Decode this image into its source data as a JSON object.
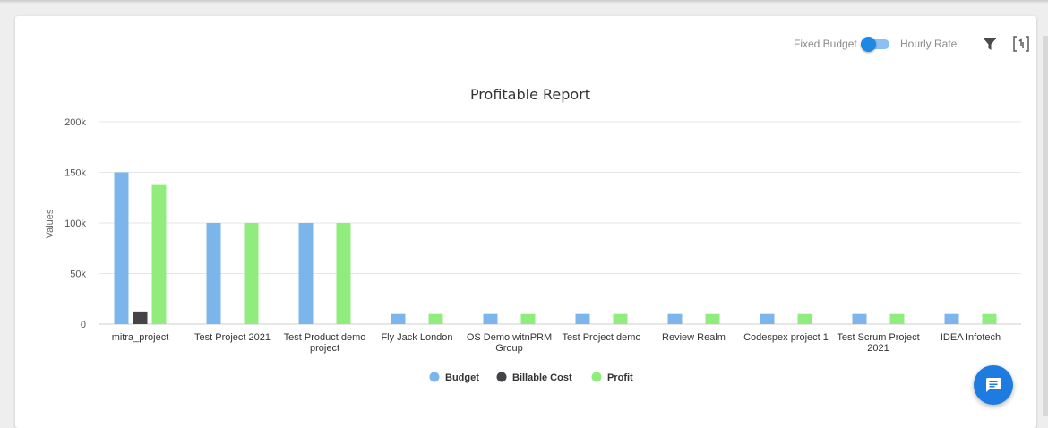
{
  "controls": {
    "fixed_budget_label": "Fixed Budget",
    "hourly_rate_label": "Hourly Rate",
    "toggle_state": "fixed-budget",
    "filter_icon": "filter-icon",
    "fullscreen_icon": "fullscreen-icon",
    "chat_icon": "chat-icon"
  },
  "colors": {
    "budget": "#7cb5ec",
    "billable_cost": "#434348",
    "profit": "#90ed7d",
    "accent": "#1e88e5"
  },
  "chart_data": {
    "type": "bar",
    "title": "Profitable Report",
    "ylabel": "Values",
    "xlabel": "",
    "ylim": [
      0,
      200000
    ],
    "yticks": [
      0,
      50000,
      100000,
      150000,
      200000
    ],
    "ytick_labels": [
      "0",
      "50k",
      "100k",
      "150k",
      "200k"
    ],
    "grid": true,
    "legend_position": "bottom-center",
    "categories": [
      "mitra_project",
      "Test Project 2021",
      "Test Product demo project",
      "Fly Jack London",
      "OS Demo witnPRM Group",
      "Test Project demo",
      "Review Realm",
      "Codespex project 1",
      "Test Scrum Project 2021",
      "IDEA Infotech"
    ],
    "category_labels": [
      [
        "mitra_project"
      ],
      [
        "Test Project 2021"
      ],
      [
        "Test Product demo",
        "project"
      ],
      [
        "Fly Jack London"
      ],
      [
        "OS Demo witnPRM",
        "Group"
      ],
      [
        "Test Project demo"
      ],
      [
        "Review Realm"
      ],
      [
        "Codespex project 1"
      ],
      [
        "Test Scrum Project",
        "2021"
      ],
      [
        "IDEA Infotech"
      ]
    ],
    "series": [
      {
        "name": "Budget",
        "values": [
          150000,
          100000,
          100000,
          10000,
          10000,
          10000,
          10000,
          10000,
          10000,
          10000
        ]
      },
      {
        "name": "Billable Cost",
        "values": [
          12500,
          0,
          0,
          0,
          0,
          0,
          0,
          0,
          0,
          0
        ]
      },
      {
        "name": "Profit",
        "values": [
          137500,
          100000,
          100000,
          10000,
          10000,
          10000,
          10000,
          10000,
          10000,
          10000
        ]
      }
    ]
  }
}
